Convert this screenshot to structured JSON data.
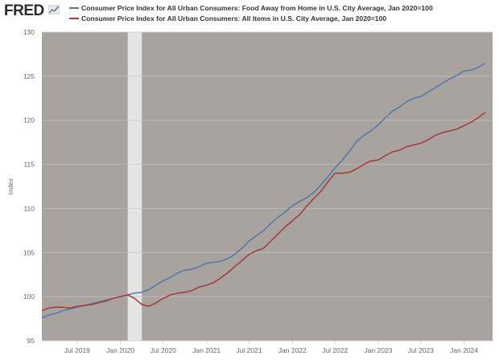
{
  "brand": "FRED",
  "colors": {
    "food_series": "#4e79a7",
    "all_items_series": "#a23b36",
    "plot_background": "#a9a3a0",
    "recession_band": "#e5e5e5",
    "grid": "#c8c3c0",
    "axis_text": "#666666"
  },
  "chart_data": {
    "type": "line",
    "ylabel": "Index",
    "ylim": [
      95,
      130
    ],
    "yticks": [
      95,
      100,
      105,
      110,
      115,
      120,
      125,
      130
    ],
    "xlim": [
      "2019-02-01",
      "2024-05-01"
    ],
    "xticks": [
      {
        "date": "2019-07-01",
        "label": "Jul 2019"
      },
      {
        "date": "2020-01-01",
        "label": "Jan 2020"
      },
      {
        "date": "2020-07-01",
        "label": "Jul 2020"
      },
      {
        "date": "2021-01-01",
        "label": "Jan 2021"
      },
      {
        "date": "2021-07-01",
        "label": "Jul 2021"
      },
      {
        "date": "2022-01-01",
        "label": "Jan 2022"
      },
      {
        "date": "2022-07-01",
        "label": "Jul 2022"
      },
      {
        "date": "2023-01-01",
        "label": "Jan 2023"
      },
      {
        "date": "2023-07-01",
        "label": "Jul 2023"
      },
      {
        "date": "2024-01-01",
        "label": "Jan 2024"
      }
    ],
    "recession": {
      "start": "2020-02-01",
      "end": "2020-04-01"
    },
    "series": [
      {
        "name": "Consumer Price Index for All Urban Consumers: Food Away from Home in U.S. City Average, Jan 2020=100",
        "color": "#4e79a7",
        "points": [
          [
            "2019-02-01",
            97.6
          ],
          [
            "2019-03-01",
            97.9
          ],
          [
            "2019-04-01",
            98.1
          ],
          [
            "2019-05-01",
            98.4
          ],
          [
            "2019-06-01",
            98.6
          ],
          [
            "2019-07-01",
            98.8
          ],
          [
            "2019-08-01",
            99.0
          ],
          [
            "2019-09-01",
            99.2
          ],
          [
            "2019-10-01",
            99.4
          ],
          [
            "2019-11-01",
            99.6
          ],
          [
            "2019-12-01",
            99.8
          ],
          [
            "2020-01-01",
            100.0
          ],
          [
            "2020-02-01",
            100.2
          ],
          [
            "2020-03-01",
            100.4
          ],
          [
            "2020-04-01",
            100.5
          ],
          [
            "2020-05-01",
            100.8
          ],
          [
            "2020-06-01",
            101.3
          ],
          [
            "2020-07-01",
            101.8
          ],
          [
            "2020-08-01",
            102.2
          ],
          [
            "2020-09-01",
            102.7
          ],
          [
            "2020-10-01",
            103.0
          ],
          [
            "2020-11-01",
            103.1
          ],
          [
            "2020-12-01",
            103.4
          ],
          [
            "2021-01-01",
            103.8
          ],
          [
            "2021-02-01",
            103.9
          ],
          [
            "2021-03-01",
            104.0
          ],
          [
            "2021-04-01",
            104.3
          ],
          [
            "2021-05-01",
            104.8
          ],
          [
            "2021-06-01",
            105.5
          ],
          [
            "2021-07-01",
            106.3
          ],
          [
            "2021-08-01",
            106.9
          ],
          [
            "2021-09-01",
            107.5
          ],
          [
            "2021-10-01",
            108.3
          ],
          [
            "2021-11-01",
            109.0
          ],
          [
            "2021-12-01",
            109.6
          ],
          [
            "2022-01-01",
            110.3
          ],
          [
            "2022-02-01",
            110.8
          ],
          [
            "2022-03-01",
            111.2
          ],
          [
            "2022-04-01",
            111.8
          ],
          [
            "2022-05-01",
            112.6
          ],
          [
            "2022-06-01",
            113.6
          ],
          [
            "2022-07-01",
            114.6
          ],
          [
            "2022-08-01",
            115.5
          ],
          [
            "2022-09-01",
            116.5
          ],
          [
            "2022-10-01",
            117.6
          ],
          [
            "2022-11-01",
            118.3
          ],
          [
            "2022-12-01",
            118.8
          ],
          [
            "2023-01-01",
            119.5
          ],
          [
            "2023-02-01",
            120.3
          ],
          [
            "2023-03-01",
            121.0
          ],
          [
            "2023-04-01",
            121.5
          ],
          [
            "2023-05-01",
            122.1
          ],
          [
            "2023-06-01",
            122.5
          ],
          [
            "2023-07-01",
            122.7
          ],
          [
            "2023-08-01",
            123.2
          ],
          [
            "2023-09-01",
            123.7
          ],
          [
            "2023-10-01",
            124.2
          ],
          [
            "2023-11-01",
            124.7
          ],
          [
            "2023-12-01",
            125.1
          ],
          [
            "2024-01-01",
            125.6
          ],
          [
            "2024-02-01",
            125.7
          ],
          [
            "2024-03-01",
            126.0
          ],
          [
            "2024-04-01",
            126.5
          ]
        ]
      },
      {
        "name": "Consumer Price Index for All Urban Consumers: All Items in U.S. City Average, Jan 2020=100",
        "color": "#a23b36",
        "points": [
          [
            "2019-02-01",
            98.4
          ],
          [
            "2019-03-01",
            98.7
          ],
          [
            "2019-04-01",
            98.8
          ],
          [
            "2019-05-01",
            98.8
          ],
          [
            "2019-06-01",
            98.7
          ],
          [
            "2019-07-01",
            98.9
          ],
          [
            "2019-08-01",
            99.0
          ],
          [
            "2019-09-01",
            99.1
          ],
          [
            "2019-10-01",
            99.3
          ],
          [
            "2019-11-01",
            99.5
          ],
          [
            "2019-12-01",
            99.8
          ],
          [
            "2020-01-01",
            100.0
          ],
          [
            "2020-02-01",
            100.2
          ],
          [
            "2020-03-01",
            99.8
          ],
          [
            "2020-04-01",
            99.1
          ],
          [
            "2020-05-01",
            98.9
          ],
          [
            "2020-06-01",
            99.3
          ],
          [
            "2020-07-01",
            99.8
          ],
          [
            "2020-08-01",
            100.2
          ],
          [
            "2020-09-01",
            100.4
          ],
          [
            "2020-10-01",
            100.5
          ],
          [
            "2020-11-01",
            100.7
          ],
          [
            "2020-12-01",
            101.1
          ],
          [
            "2021-01-01",
            101.3
          ],
          [
            "2021-02-01",
            101.6
          ],
          [
            "2021-03-01",
            102.1
          ],
          [
            "2021-04-01",
            102.7
          ],
          [
            "2021-05-01",
            103.4
          ],
          [
            "2021-06-01",
            104.1
          ],
          [
            "2021-07-01",
            104.8
          ],
          [
            "2021-08-01",
            105.2
          ],
          [
            "2021-09-01",
            105.5
          ],
          [
            "2021-10-01",
            106.3
          ],
          [
            "2021-11-01",
            107.1
          ],
          [
            "2021-12-01",
            107.9
          ],
          [
            "2022-01-01",
            108.6
          ],
          [
            "2022-02-01",
            109.3
          ],
          [
            "2022-03-01",
            110.2
          ],
          [
            "2022-04-01",
            111.1
          ],
          [
            "2022-05-01",
            111.9
          ],
          [
            "2022-06-01",
            113.0
          ],
          [
            "2022-07-01",
            114.0
          ],
          [
            "2022-08-01",
            114.0
          ],
          [
            "2022-09-01",
            114.1
          ],
          [
            "2022-10-01",
            114.5
          ],
          [
            "2022-11-01",
            115.0
          ],
          [
            "2022-12-01",
            115.4
          ],
          [
            "2023-01-01",
            115.5
          ],
          [
            "2023-02-01",
            116.0
          ],
          [
            "2023-03-01",
            116.4
          ],
          [
            "2023-04-01",
            116.6
          ],
          [
            "2023-05-01",
            117.0
          ],
          [
            "2023-06-01",
            117.2
          ],
          [
            "2023-07-01",
            117.4
          ],
          [
            "2023-08-01",
            117.8
          ],
          [
            "2023-09-01",
            118.3
          ],
          [
            "2023-10-01",
            118.6
          ],
          [
            "2023-11-01",
            118.8
          ],
          [
            "2023-12-01",
            119.0
          ],
          [
            "2024-01-01",
            119.4
          ],
          [
            "2024-02-01",
            119.8
          ],
          [
            "2024-03-01",
            120.3
          ],
          [
            "2024-04-01",
            120.9
          ]
        ]
      }
    ]
  }
}
